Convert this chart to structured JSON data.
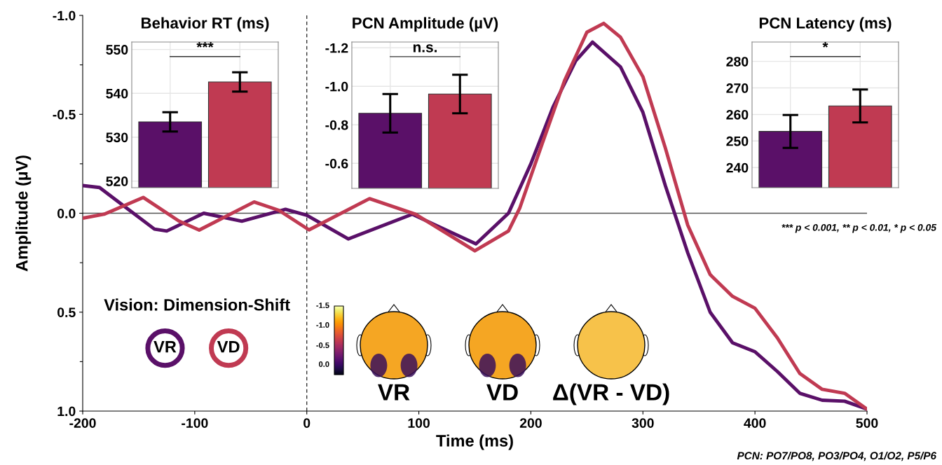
{
  "chart_data": [
    {
      "type": "line",
      "xlabel": "Time (ms)",
      "ylabel": "Amplitude (µV)",
      "legend": "bottom left",
      "legend_title": "Vision: Dimension-Shift",
      "xlim": [
        -200,
        500
      ],
      "xticks": [
        -200,
        -100,
        0,
        100,
        200,
        300,
        400,
        500
      ],
      "ylim": [
        1.0,
        -1.0
      ],
      "yticks": [
        {
          "value": -1,
          "label": "-1.0"
        },
        {
          "value": -0.75,
          "label": null
        },
        -0.5,
        {
          "value": -0.25,
          "label": null
        },
        {
          "value": 0,
          "label": "0.0"
        },
        {
          "value": 0.25,
          "label": null
        },
        0.5,
        {
          "value": 0.75,
          "label": null
        },
        {
          "value": 1,
          "label": "1.0"
        }
      ],
      "grid": false,
      "series": [
        {
          "name": "VR",
          "color": "#5a1068",
          "x": [
            -200,
            -185,
            -164,
            -136,
            -125,
            -92,
            -58,
            -19,
            0,
            37,
            94,
            151,
            180,
            200,
            220,
            240,
            255,
            280,
            300,
            320,
            340,
            360,
            380,
            400,
            420,
            440,
            460,
            480,
            500
          ],
          "values": [
            -0.14,
            -0.13,
            -0.04,
            0.08,
            0.09,
            0.0,
            0.04,
            -0.02,
            0.01,
            0.13,
            0.005,
            0.155,
            0.0,
            -0.25,
            -0.54,
            -0.77,
            -0.865,
            -0.74,
            -0.51,
            -0.14,
            0.2,
            0.5,
            0.655,
            0.7,
            0.8,
            0.91,
            0.945,
            0.95,
            0.99
          ]
        },
        {
          "name": "VD",
          "color": "#c03a52",
          "x": [
            -200,
            -181,
            -146,
            -114,
            -96,
            -47,
            -25,
            2,
            56,
            97,
            150,
            180,
            190,
            210,
            230,
            250,
            265,
            280,
            300,
            320,
            340,
            360,
            380,
            400,
            420,
            440,
            460,
            480,
            500
          ],
          "values": [
            0.025,
            0.005,
            -0.08,
            0.04,
            0.085,
            -0.057,
            -0.015,
            0.084,
            -0.074,
            0.005,
            0.19,
            0.09,
            -0.025,
            -0.35,
            -0.67,
            -0.915,
            -0.96,
            -0.89,
            -0.69,
            -0.33,
            0.06,
            0.31,
            0.42,
            0.48,
            0.63,
            0.81,
            0.89,
            0.91,
            0.99
          ]
        }
      ],
      "ref_lines": [
        {
          "axis": "y",
          "value": 0,
          "color": "#555555",
          "line_style": "solid"
        },
        {
          "axis": "x",
          "value": 0,
          "color": "#222222",
          "line_style": "dashed"
        }
      ],
      "annotations": [
        "*** p < 0.001, ** p < 0.01, * p < 0.05",
        "PCN: PO7/PO8, PO3/PO4, O1/O2, P5/P6",
        "-1.5",
        "-1.0",
        "-0.5",
        "0.0",
        "VR",
        "VD",
        "Δ(VR - VD)"
      ]
    },
    {
      "type": "bar",
      "title": "Behavior RT (ms)",
      "categories": [
        null,
        null
      ],
      "values": [
        533.5,
        542.6
      ],
      "errors": [
        2.2,
        2.2
      ],
      "colors": [
        "#5a1068",
        "#c03a52"
      ],
      "ylim": [
        518.5,
        551.7
      ],
      "yticks": [
        520,
        530,
        540,
        550
      ],
      "grid": true,
      "tick_labels": "y",
      "annotations": [
        "***"
      ]
    },
    {
      "type": "bar",
      "title": "PCN Amplitude (µV)",
      "categories": [
        null,
        null
      ],
      "values": [
        -0.86,
        -0.96
      ],
      "errors": [
        0.1,
        0.1
      ],
      "colors": [
        "#5a1068",
        "#c03a52"
      ],
      "ylim": [
        -0.47,
        -1.23
      ],
      "yticks": [
        -1.2,
        {
          "value": -1,
          "label": "-1.0"
        },
        -0.8,
        -0.6
      ],
      "grid": true,
      "tick_labels": "y",
      "annotations": [
        "n.s."
      ]
    },
    {
      "type": "bar",
      "title": "PCN Latency (ms)",
      "categories": [
        null,
        null
      ],
      "values": [
        253.6,
        263.2
      ],
      "errors": [
        6.2,
        6.2
      ],
      "colors": [
        "#5a1068",
        "#c03a52"
      ],
      "ylim": [
        232.4,
        287.3
      ],
      "yticks": [
        240,
        250,
        260,
        270,
        280
      ],
      "grid": true,
      "tick_labels": "y",
      "annotations": [
        "*"
      ]
    }
  ]
}
